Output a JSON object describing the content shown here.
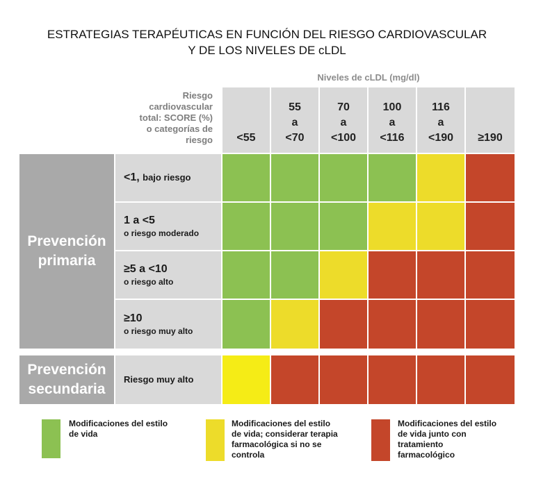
{
  "title": {
    "line1": "ESTRATEGIAS TERAPÉUTICAS EN FUNCIÓN DEL RIESGO CARDIOVASCULAR",
    "line2": "Y DE LOS NIVELES DE cLDL"
  },
  "ldl_header": "Niveles de cLDL (mg/dl)",
  "risk_header": [
    "Riesgo",
    "cardiovascular",
    "total: SCORE (%)",
    "o categorías de",
    "riesgo"
  ],
  "columns": [
    {
      "lines": [
        "<55"
      ]
    },
    {
      "lines": [
        "55",
        "a",
        "<70"
      ]
    },
    {
      "lines": [
        "70",
        "a",
        "<100"
      ]
    },
    {
      "lines": [
        "100",
        "a",
        "<116"
      ]
    },
    {
      "lines": [
        "116",
        "a",
        "<190"
      ]
    },
    {
      "lines": [
        "≥190"
      ]
    }
  ],
  "groups": {
    "primary": [
      "Prevención",
      "primaria"
    ],
    "secondary": [
      "Prevención",
      "secundaria"
    ]
  },
  "rows": [
    {
      "main": "<1,",
      "sub": "bajo riesgo",
      "inline": true,
      "cells": [
        "green",
        "green",
        "green",
        "green",
        "yellow",
        "red"
      ]
    },
    {
      "main": "1 a <5",
      "sub": "o riesgo moderado",
      "inline": false,
      "cells": [
        "green",
        "green",
        "green",
        "yellow",
        "yellow",
        "red"
      ]
    },
    {
      "main": "≥5 a <10",
      "sub": "o riesgo alto",
      "inline": false,
      "cells": [
        "green",
        "green",
        "yellow",
        "red",
        "red",
        "red"
      ]
    },
    {
      "main": "≥10",
      "sub": "o riesgo muy alto",
      "inline": false,
      "cells": [
        "green",
        "yellow",
        "red",
        "red",
        "red",
        "red"
      ]
    }
  ],
  "secondary_row": {
    "label": "Riesgo muy alto",
    "cells": [
      "brightyellow",
      "red",
      "red",
      "red",
      "red",
      "red"
    ]
  },
  "colors": {
    "green": "#8cc152",
    "yellow": "#eddc2a",
    "brightyellow": "#f5ec16",
    "red": "#c4462a",
    "gray_dark": "#a9a9a9",
    "gray_light": "#d9d9d9"
  },
  "legend": [
    {
      "color": "green",
      "lines": [
        "Modificaciones del estilo",
        "de vida"
      ]
    },
    {
      "color": "yellow",
      "lines": [
        "Modificaciones del estilo",
        "de vida; considerar terapia",
        "farmacológica si no se",
        "controla"
      ]
    },
    {
      "color": "red",
      "lines": [
        "Modificaciones del estilo",
        "de vida junto con",
        "tratamiento",
        "farmacológico"
      ]
    }
  ]
}
